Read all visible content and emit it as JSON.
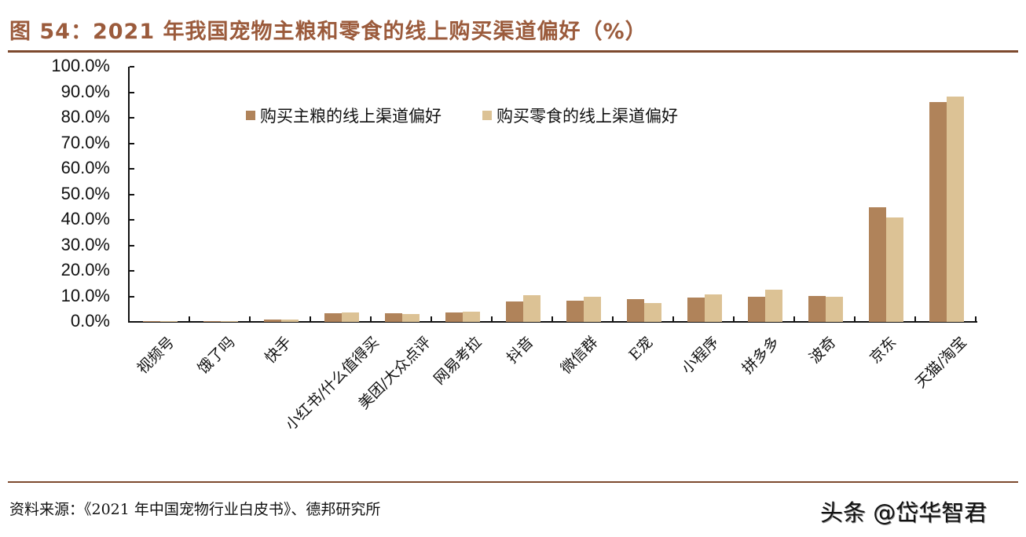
{
  "header": {
    "title": "图 54：2021 年我国宠物主粮和零食的线上购买渠道偏好（%）"
  },
  "footer": {
    "source": "资料来源：《2021 年中国宠物行业白皮书》、德邦研究所",
    "watermark": "头条 @岱华智君"
  },
  "colors": {
    "title": "#9b5b3c",
    "rule": "#7d4a2e",
    "series_main_food": "#b0835a",
    "series_snack": "#dcc295"
  },
  "chart_data": {
    "type": "bar",
    "title": "2021 年我国宠物主粮和零食的线上购买渠道偏好（%）",
    "xlabel": "",
    "ylabel": "",
    "ylim": [
      0,
      100
    ],
    "yticks": [
      "0.0%",
      "10.0%",
      "20.0%",
      "30.0%",
      "40.0%",
      "50.0%",
      "60.0%",
      "70.0%",
      "80.0%",
      "90.0%",
      "100.0%"
    ],
    "grid": false,
    "legend_position": "top-inside",
    "categories": [
      "视频号",
      "饿了吗",
      "快手",
      "小红书/什么值得买",
      "美团/大众点评",
      "网易考拉",
      "抖音",
      "微信群",
      "E宠",
      "小程序",
      "拼多多",
      "波奇",
      "京东",
      "天猫/淘宝"
    ],
    "series": [
      {
        "name": "购买主粮的线上渠道偏好",
        "values": [
          0.1,
          0.3,
          0.8,
          3.4,
          3.3,
          3.7,
          8.0,
          8.2,
          8.9,
          9.5,
          9.9,
          10.1,
          45.0,
          86.2
        ]
      },
      {
        "name": "购买零食的线上渠道偏好",
        "values": [
          0.2,
          0.3,
          1.0,
          3.6,
          3.1,
          4.1,
          10.6,
          10.0,
          7.4,
          10.7,
          12.6,
          10.0,
          40.9,
          88.3
        ]
      }
    ]
  }
}
